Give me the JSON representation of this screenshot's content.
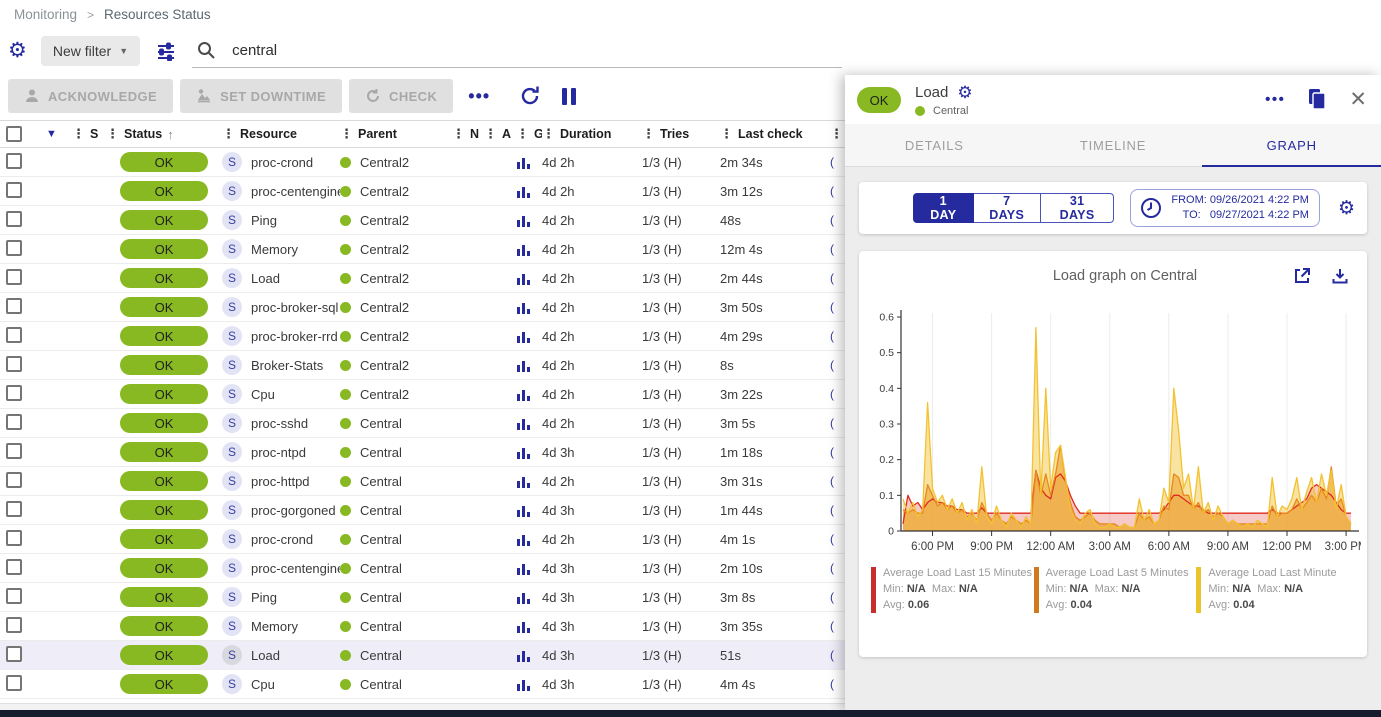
{
  "breadcrumb": {
    "items": [
      "Monitoring",
      "Resources Status"
    ],
    "separator": ">"
  },
  "filter": {
    "new_filter_label": "New filter",
    "search_value": "central"
  },
  "toolbar": {
    "acknowledge_label": "ACKNOWLEDGE",
    "set_downtime_label": "SET DOWNTIME",
    "check_label": "CHECK",
    "more_label": "•••"
  },
  "table": {
    "columns": [
      "S",
      "Status",
      "Resource",
      "Parent",
      "N",
      "A",
      "G",
      "Duration",
      "Tries",
      "Last check"
    ],
    "status_sort": "asc",
    "clipped_cell": "(",
    "rows": [
      {
        "status": "OK",
        "type": "S",
        "resource": "proc-crond",
        "parent": "Central2",
        "duration": "4d 2h",
        "tries": "1/3 (H)",
        "last_check": "2m 34s",
        "selected": false
      },
      {
        "status": "OK",
        "type": "S",
        "resource": "proc-centengine",
        "parent": "Central2",
        "duration": "4d 2h",
        "tries": "1/3 (H)",
        "last_check": "3m 12s",
        "selected": false
      },
      {
        "status": "OK",
        "type": "S",
        "resource": "Ping",
        "parent": "Central2",
        "duration": "4d 2h",
        "tries": "1/3 (H)",
        "last_check": "48s",
        "selected": false
      },
      {
        "status": "OK",
        "type": "S",
        "resource": "Memory",
        "parent": "Central2",
        "duration": "4d 2h",
        "tries": "1/3 (H)",
        "last_check": "12m 4s",
        "selected": false
      },
      {
        "status": "OK",
        "type": "S",
        "resource": "Load",
        "parent": "Central2",
        "duration": "4d 2h",
        "tries": "1/3 (H)",
        "last_check": "2m 44s",
        "selected": false
      },
      {
        "status": "OK",
        "type": "S",
        "resource": "proc-broker-sql",
        "parent": "Central2",
        "duration": "4d 2h",
        "tries": "1/3 (H)",
        "last_check": "3m 50s",
        "selected": false
      },
      {
        "status": "OK",
        "type": "S",
        "resource": "proc-broker-rrd",
        "parent": "Central2",
        "duration": "4d 2h",
        "tries": "1/3 (H)",
        "last_check": "4m 29s",
        "selected": false
      },
      {
        "status": "OK",
        "type": "S",
        "resource": "Broker-Stats",
        "parent": "Central2",
        "duration": "4d 2h",
        "tries": "1/3 (H)",
        "last_check": "8s",
        "selected": false
      },
      {
        "status": "OK",
        "type": "S",
        "resource": "Cpu",
        "parent": "Central2",
        "duration": "4d 2h",
        "tries": "1/3 (H)",
        "last_check": "3m 22s",
        "selected": false
      },
      {
        "status": "OK",
        "type": "S",
        "resource": "proc-sshd",
        "parent": "Central",
        "duration": "4d 2h",
        "tries": "1/3 (H)",
        "last_check": "3m 5s",
        "selected": false
      },
      {
        "status": "OK",
        "type": "S",
        "resource": "proc-ntpd",
        "parent": "Central",
        "duration": "4d 3h",
        "tries": "1/3 (H)",
        "last_check": "1m 18s",
        "selected": false
      },
      {
        "status": "OK",
        "type": "S",
        "resource": "proc-httpd",
        "parent": "Central",
        "duration": "4d 2h",
        "tries": "1/3 (H)",
        "last_check": "3m 31s",
        "selected": false
      },
      {
        "status": "OK",
        "type": "S",
        "resource": "proc-gorgoned",
        "parent": "Central",
        "duration": "4d 3h",
        "tries": "1/3 (H)",
        "last_check": "1m 44s",
        "selected": false
      },
      {
        "status": "OK",
        "type": "S",
        "resource": "proc-crond",
        "parent": "Central",
        "duration": "4d 2h",
        "tries": "1/3 (H)",
        "last_check": "4m 1s",
        "selected": false
      },
      {
        "status": "OK",
        "type": "S",
        "resource": "proc-centengine",
        "parent": "Central",
        "duration": "4d 3h",
        "tries": "1/3 (H)",
        "last_check": "2m 10s",
        "selected": false
      },
      {
        "status": "OK",
        "type": "S",
        "resource": "Ping",
        "parent": "Central",
        "duration": "4d 3h",
        "tries": "1/3 (H)",
        "last_check": "3m 8s",
        "selected": false
      },
      {
        "status": "OK",
        "type": "S",
        "resource": "Memory",
        "parent": "Central",
        "duration": "4d 3h",
        "tries": "1/3 (H)",
        "last_check": "3m 35s",
        "selected": false
      },
      {
        "status": "OK",
        "type": "S",
        "resource": "Load",
        "parent": "Central",
        "duration": "4d 3h",
        "tries": "1/3 (H)",
        "last_check": "51s",
        "selected": true
      },
      {
        "status": "OK",
        "type": "S",
        "resource": "Cpu",
        "parent": "Central",
        "duration": "4d 3h",
        "tries": "1/3 (H)",
        "last_check": "4m 4s",
        "selected": false
      }
    ]
  },
  "panel": {
    "status_chip": "OK",
    "title": "Load",
    "parent": "Central",
    "tabs": [
      {
        "label": "DETAILS",
        "active": false
      },
      {
        "label": "TIMELINE",
        "active": false
      },
      {
        "label": "GRAPH",
        "active": true
      }
    ],
    "time_ranges": [
      {
        "label": "1 DAY",
        "selected": true
      },
      {
        "label": "7 DAYS",
        "selected": false
      },
      {
        "label": "31 DAYS",
        "selected": false
      }
    ],
    "from_label": "FROM:",
    "from_value": "09/26/2021 4:22 PM",
    "to_label": "TO:",
    "to_value": "09/27/2021 4:22 PM"
  },
  "chart_data": {
    "type": "area",
    "title": "Load graph on Central",
    "xlabel": "",
    "ylabel": "",
    "ylim": [
      0,
      0.6
    ],
    "y_ticks": [
      0,
      0.1,
      0.2,
      0.3,
      0.4,
      0.5,
      0.6
    ],
    "grid": "vertical-only",
    "legend_position": "bottom",
    "legend_labels": {
      "min": "Min:",
      "max": "Max:",
      "avg": "Avg:"
    },
    "x_ticks": [
      {
        "pos": 6,
        "label": "6:00 PM"
      },
      {
        "pos": 18,
        "label": "9:00 PM"
      },
      {
        "pos": 30,
        "label": "12:00 AM"
      },
      {
        "pos": 42,
        "label": "3:00 AM"
      },
      {
        "pos": 54,
        "label": "6:00 AM"
      },
      {
        "pos": 66,
        "label": "9:00 AM"
      },
      {
        "pos": 78,
        "label": "12:00 PM"
      },
      {
        "pos": 90,
        "label": "3:00 PM"
      }
    ],
    "series": [
      {
        "name": "Average Load Last 15 Minutes",
        "legend_color": "#c62f2b",
        "color": "#e02a20",
        "fill": "rgba(224,80,70,0.30)",
        "min": "N/A",
        "max": "N/A",
        "avg": "0.06",
        "values": [
          0.02,
          0.1,
          0.07,
          0.08,
          0.06,
          0.08,
          0.09,
          0.08,
          0.08,
          0.07,
          0.07,
          0.06,
          0.06,
          0.05,
          0.05,
          0.05,
          0.065,
          0.05,
          0.05,
          0.05,
          0.05,
          0.05,
          0.05,
          0.05,
          0.05,
          0.05,
          0.05,
          0.17,
          0.12,
          0.1,
          0.09,
          0.15,
          0.16,
          0.14,
          0.1,
          0.07,
          0.05,
          0.05,
          0.05,
          0.05,
          0.05,
          0.05,
          0.05,
          0.05,
          0.05,
          0.05,
          0.05,
          0.05,
          0.05,
          0.05,
          0.05,
          0.05,
          0.05,
          0.06,
          0.08,
          0.1,
          0.1,
          0.09,
          0.08,
          0.07,
          0.07,
          0.06,
          0.05,
          0.05,
          0.05,
          0.05,
          0.05,
          0.05,
          0.05,
          0.05,
          0.05,
          0.05,
          0.05,
          0.05,
          0.05,
          0.06,
          0.05,
          0.05,
          0.05,
          0.06,
          0.07,
          0.08,
          0.09,
          0.12,
          0.13,
          0.12,
          0.11,
          0.1,
          0.08,
          0.06,
          0.05,
          0.05
        ]
      },
      {
        "name": "Average Load Last 5 Minutes",
        "legend_color": "#cf7a1d",
        "color": "#e8891d",
        "fill": "rgba(232,137,29,0.55)",
        "min": "N/A",
        "max": "N/A",
        "avg": "0.04",
        "values": [
          0.06,
          0.05,
          0.06,
          0.05,
          0.05,
          0.13,
          0.1,
          0.07,
          0.08,
          0.06,
          0.07,
          0.05,
          0.06,
          0.04,
          0.05,
          0.03,
          0.08,
          0.05,
          0.03,
          0.05,
          0.03,
          0.02,
          0.04,
          0.03,
          0.02,
          0.03,
          0.02,
          0.17,
          0.1,
          0.16,
          0.1,
          0.16,
          0.24,
          0.14,
          0.08,
          0.04,
          0.03,
          0.04,
          0.05,
          0.03,
          0.02,
          0.02,
          0.02,
          0.02,
          0.01,
          0.02,
          0.01,
          0.01,
          0.05,
          0.03,
          0.04,
          0.02,
          0.03,
          0.07,
          0.06,
          0.16,
          0.15,
          0.1,
          0.1,
          0.06,
          0.08,
          0.05,
          0.06,
          0.04,
          0.05,
          0.04,
          0.02,
          0.03,
          0.02,
          0.02,
          0.02,
          0.02,
          0.02,
          0.02,
          0.02,
          0.07,
          0.04,
          0.05,
          0.05,
          0.06,
          0.09,
          0.06,
          0.08,
          0.1,
          0.08,
          0.12,
          0.09,
          0.18,
          0.07,
          0.09,
          0.04,
          0.02
        ]
      },
      {
        "name": "Average Load Last Minute",
        "legend_color": "#e9c42a",
        "color": "#f2c230",
        "fill": "rgba(242,194,48,0.45)",
        "min": "N/A",
        "max": "N/A",
        "avg": "0.04",
        "values": [
          0.09,
          0.05,
          0.08,
          0.04,
          0.06,
          0.36,
          0.12,
          0.08,
          0.1,
          0.06,
          0.09,
          0.05,
          0.08,
          0.03,
          0.06,
          0.02,
          0.18,
          0.04,
          0.02,
          0.07,
          0.03,
          0.01,
          0.05,
          0.03,
          0.01,
          0.04,
          0.02,
          0.57,
          0.1,
          0.4,
          0.12,
          0.22,
          0.24,
          0.15,
          0.06,
          0.03,
          0.02,
          0.05,
          0.06,
          0.02,
          0.01,
          0.01,
          0.02,
          0.01,
          0.01,
          0.02,
          0.01,
          0.01,
          0.09,
          0.03,
          0.06,
          0.02,
          0.03,
          0.12,
          0.08,
          0.4,
          0.28,
          0.12,
          0.16,
          0.06,
          0.18,
          0.05,
          0.08,
          0.03,
          0.07,
          0.04,
          0.02,
          0.03,
          0.02,
          0.01,
          0.02,
          0.01,
          0.03,
          0.02,
          0.01,
          0.15,
          0.04,
          0.07,
          0.06,
          0.09,
          0.15,
          0.06,
          0.11,
          0.15,
          0.08,
          0.16,
          0.1,
          0.17,
          0.06,
          0.13,
          0.04,
          0.02
        ]
      }
    ]
  }
}
